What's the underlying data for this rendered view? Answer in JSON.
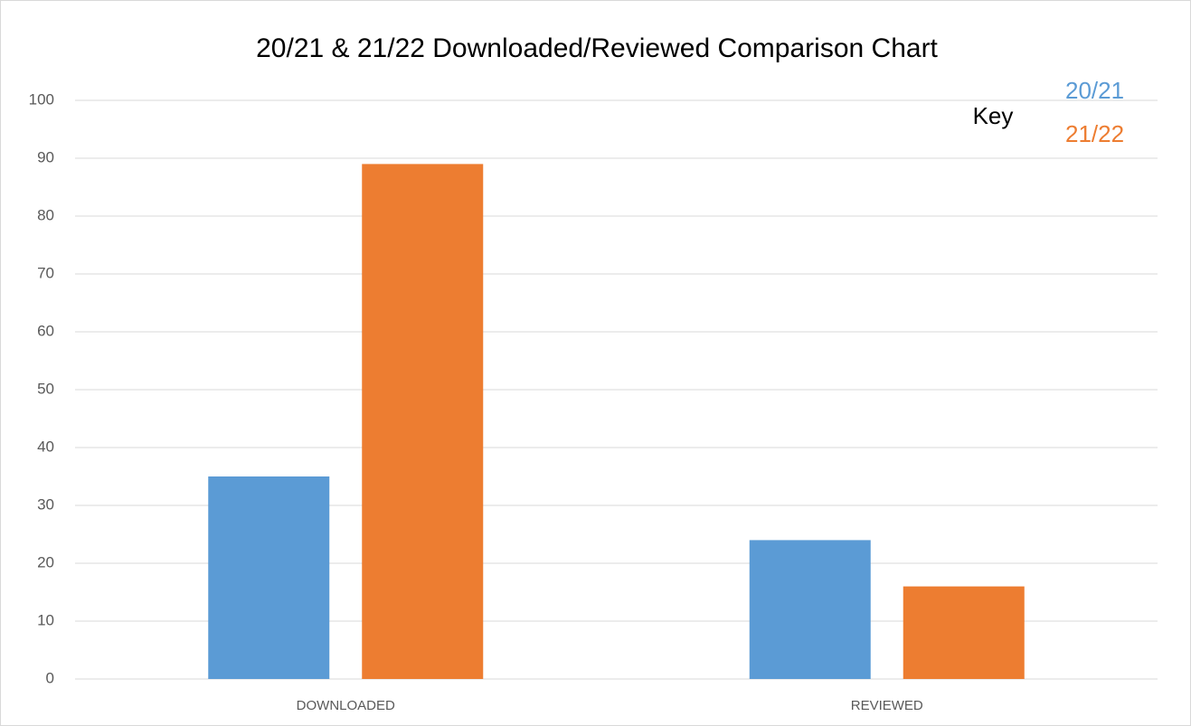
{
  "chart_data": {
    "type": "bar",
    "title": "20/21 & 21/22 Downloaded/Reviewed Comparison Chart",
    "legend_title": "Key",
    "categories": [
      "DOWNLOADED",
      "REVIEWED"
    ],
    "series": [
      {
        "name": "20/21",
        "color": "#5b9bd5",
        "values": [
          35,
          24
        ]
      },
      {
        "name": "21/22",
        "color": "#ed7d31",
        "values": [
          89,
          16
        ]
      }
    ],
    "ylim": [
      0,
      100
    ],
    "yticks": [
      0,
      10,
      20,
      30,
      40,
      50,
      60,
      70,
      80,
      90,
      100
    ],
    "grid": true
  }
}
